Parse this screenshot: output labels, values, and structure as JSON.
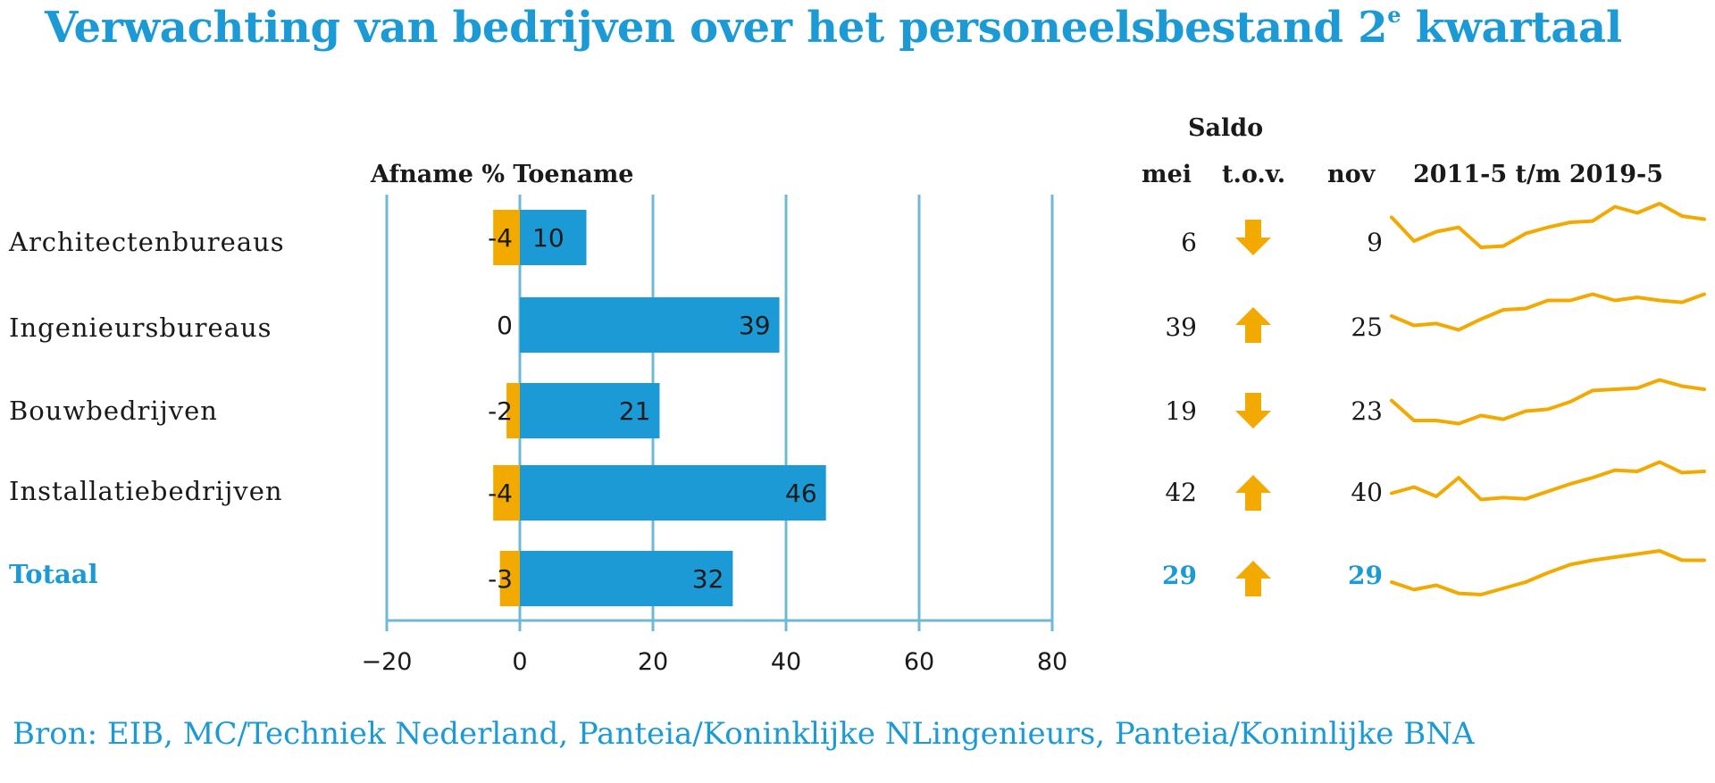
{
  "title": "Verwachting van bedrijven over het personeelsbestand 2",
  "title_sup": "e",
  "title_end": " kwartaal",
  "source": "Bron: EIB, MC/Techniek Nederland, Panteia/Koninklijke NLingenieurs, Panteia/Koninlijke BNA",
  "headers": {
    "saldo": "Saldo",
    "bars": "Afname % Toename",
    "mei": "mei",
    "tov": "t.o.v.",
    "nov": "nov",
    "sparkline": "2011-5 t/m 2019-5"
  },
  "colors": {
    "blue": "#1b9ad6",
    "orange": "#f2a900",
    "grid": "#6fb8d6"
  },
  "chart_data": {
    "type": "bar",
    "orientation": "horizontal",
    "categories": [
      "Architectenbureaus",
      "Ingenieursbureaus",
      "Bouwbedrijven",
      "Installatiebedrijven",
      "Totaal"
    ],
    "series": [
      {
        "name": "Afname",
        "values": [
          -4,
          0,
          -2,
          -4,
          -3
        ],
        "color": "#f2a900"
      },
      {
        "name": "Toename",
        "values": [
          10,
          39,
          21,
          46,
          32
        ],
        "color": "#1b9ad6"
      }
    ],
    "xlim": [
      -20,
      80
    ],
    "xticks": [
      -20,
      0,
      20,
      40,
      60,
      80
    ],
    "grid": true,
    "saldo_mei": [
      6,
      39,
      19,
      42,
      29
    ],
    "saldo_nov": [
      9,
      25,
      23,
      40,
      29
    ],
    "trend": [
      "down",
      "up",
      "down",
      "up",
      "up"
    ],
    "sparklines": [
      [
        0.78,
        0.4,
        0.55,
        0.62,
        0.3,
        0.32,
        0.52,
        0.62,
        0.7,
        0.72,
        0.95,
        0.85,
        1.0,
        0.8,
        0.75
      ],
      [
        0.6,
        0.45,
        0.48,
        0.38,
        0.55,
        0.7,
        0.72,
        0.85,
        0.85,
        0.95,
        0.85,
        0.9,
        0.85,
        0.82,
        0.95
      ],
      [
        0.62,
        0.3,
        0.3,
        0.25,
        0.38,
        0.32,
        0.45,
        0.48,
        0.6,
        0.78,
        0.8,
        0.82,
        0.95,
        0.85,
        0.8
      ],
      [
        0.45,
        0.55,
        0.4,
        0.7,
        0.35,
        0.38,
        0.36,
        0.48,
        0.6,
        0.7,
        0.82,
        0.8,
        0.95,
        0.78,
        0.8
      ],
      [
        0.4,
        0.28,
        0.35,
        0.22,
        0.2,
        0.3,
        0.4,
        0.55,
        0.68,
        0.75,
        0.8,
        0.85,
        0.9,
        0.75,
        0.75
      ]
    ]
  }
}
